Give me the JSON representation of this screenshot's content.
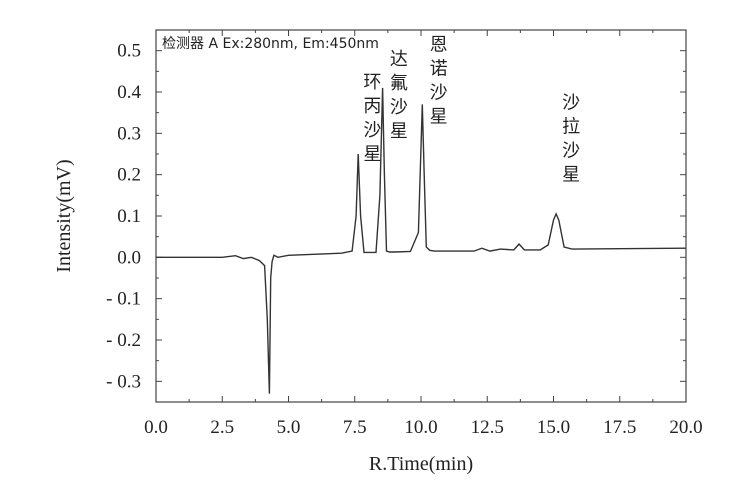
{
  "chart_data": {
    "type": "line",
    "xlabel": "R.Time(min)",
    "ylabel": "Intensity(mV)",
    "annotation": "检测器 A Ex:280nm, Em:450nm",
    "xlim": [
      0.0,
      20.0
    ],
    "ylim": [
      -0.35,
      0.55
    ],
    "x_ticks": [
      "0.0",
      "2.5",
      "5.0",
      "7.5",
      "10.0",
      "12.5",
      "15.0",
      "17.5",
      "20.0"
    ],
    "y_ticks": [
      "0.5",
      "0.4",
      "0.3",
      "0.2",
      "0.1",
      "0.0",
      "- 0.1",
      "- 0.2",
      "- 0.3"
    ],
    "grid": false,
    "peaks": [
      {
        "name": "环丙沙星",
        "retention_time": 7.6,
        "intensity": 0.25
      },
      {
        "name": "达氟沙星",
        "retention_time": 8.6,
        "intensity": 0.41
      },
      {
        "name": "恩诺沙星",
        "retention_time": 10.1,
        "intensity": 0.37
      },
      {
        "name": "沙拉沙星",
        "retention_time": 15.1,
        "intensity": 0.105
      }
    ],
    "series": [
      {
        "x": [
          0.0,
          2.5,
          3.0,
          3.3,
          3.6,
          3.9,
          4.1,
          4.2,
          4.28,
          4.33,
          4.38,
          4.45,
          4.6,
          5.0,
          7.0,
          7.4,
          7.55,
          7.63,
          7.72,
          7.85,
          8.0,
          8.3,
          8.45,
          8.55,
          8.62,
          8.7,
          8.82,
          9.0,
          9.6,
          9.9,
          10.05,
          10.12,
          10.2,
          10.33,
          10.5,
          12.0,
          12.3,
          12.6,
          13.0,
          13.5,
          13.7,
          13.9,
          14.5,
          14.8,
          15.0,
          15.1,
          15.2,
          15.4,
          15.7,
          20.0
        ],
        "y": [
          0.0,
          0.0,
          0.004,
          -0.003,
          0.0,
          -0.008,
          -0.02,
          -0.15,
          -0.33,
          -0.05,
          -0.01,
          0.005,
          0.0,
          0.005,
          0.01,
          0.015,
          0.1,
          0.25,
          0.1,
          0.012,
          0.012,
          0.012,
          0.15,
          0.41,
          0.2,
          0.015,
          0.013,
          0.013,
          0.014,
          0.06,
          0.37,
          0.2,
          0.025,
          0.017,
          0.015,
          0.015,
          0.022,
          0.015,
          0.02,
          0.018,
          0.032,
          0.018,
          0.018,
          0.03,
          0.09,
          0.105,
          0.09,
          0.025,
          0.02,
          0.022
        ]
      }
    ]
  }
}
